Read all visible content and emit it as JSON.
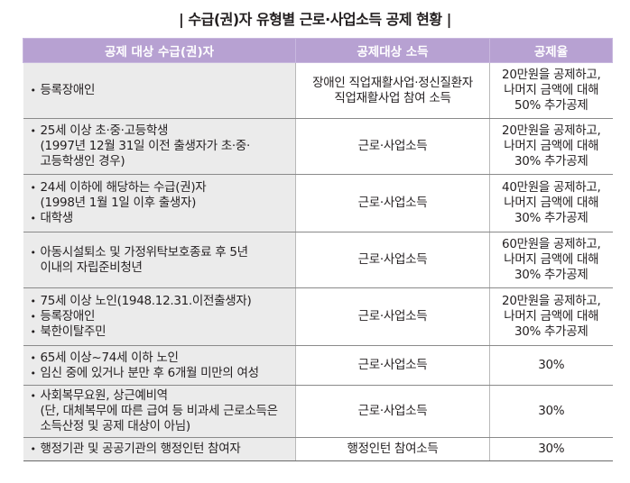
{
  "title": "| 수급(권)자 유형별 근로·사업소득 공제 현황 |",
  "headers": [
    "공제 대상 수급(권)자",
    "공제대상 소득",
    "공제율"
  ],
  "rows": [
    {
      "target": [
        {
          "b": "등록장애인"
        }
      ],
      "income": [
        "장애인 직업재활사업·정신질환자",
        "직업재활사업 참여 소득"
      ],
      "rate": [
        "20만원을 공제하고,",
        "나머지 금액에 대해",
        "50% 추가공제"
      ]
    },
    {
      "target": [
        {
          "b": "25세 이상 초·중·고등학생"
        },
        {
          "s": "(1997년 12월 31일 이전 출생자가 초·중·"
        },
        {
          "s": "고등학생인 경우)"
        }
      ],
      "income": [
        "근로·사업소득"
      ],
      "rate": [
        "20만원을 공제하고,",
        "나머지 금액에 대해",
        "30% 추가공제"
      ]
    },
    {
      "target": [
        {
          "b": "24세 이하에 해당하는 수급(권)자"
        },
        {
          "s": "(1998년 1월 1일 이후 출생자)"
        },
        {
          "b": "대학생"
        }
      ],
      "income": [
        "근로·사업소득"
      ],
      "rate": [
        "40만원을 공제하고,",
        "나머지 금액에 대해",
        "30% 추가공제"
      ]
    },
    {
      "target": [
        {
          "b": "아동시설퇴소 및 가정위탁보호종료 후 5년"
        },
        {
          "s": "이내의 자립준비청년"
        }
      ],
      "income": [
        "근로·사업소득"
      ],
      "rate": [
        "60만원을 공제하고,",
        "나머지 금액에 대해",
        "30% 추가공제"
      ]
    },
    {
      "target": [
        {
          "b": "75세 이상 노인(1948.12.31.이전출생자)"
        },
        {
          "b": "등록장애인"
        },
        {
          "b": "북한이탈주민"
        }
      ],
      "income": [
        "근로·사업소득"
      ],
      "rate": [
        "20만원을 공제하고,",
        "나머지 금액에 대해",
        "30% 추가공제"
      ]
    },
    {
      "target": [
        {
          "b": "65세 이상~74세 이하 노인"
        },
        {
          "b": "임신 중에 있거나 분만 후 6개월 미만의 여성"
        }
      ],
      "income": [
        "근로·사업소득"
      ],
      "rate": [
        "30%"
      ]
    },
    {
      "target": [
        {
          "b": "사회복무요원, 상근예비역"
        },
        {
          "s": "(단, 대체복무에 따른 급여 등 비과세 근로소득은"
        },
        {
          "s": "소득산정 및 공제 대상이 아님)"
        }
      ],
      "income": [
        "근로·사업소득"
      ],
      "rate": [
        "30%"
      ]
    },
    {
      "target": [
        {
          "b": "행정기관 및 공공기관의 행정인턴 참여자"
        }
      ],
      "income": [
        "행정인턴 참여소득"
      ],
      "rate": [
        "30%"
      ]
    }
  ]
}
